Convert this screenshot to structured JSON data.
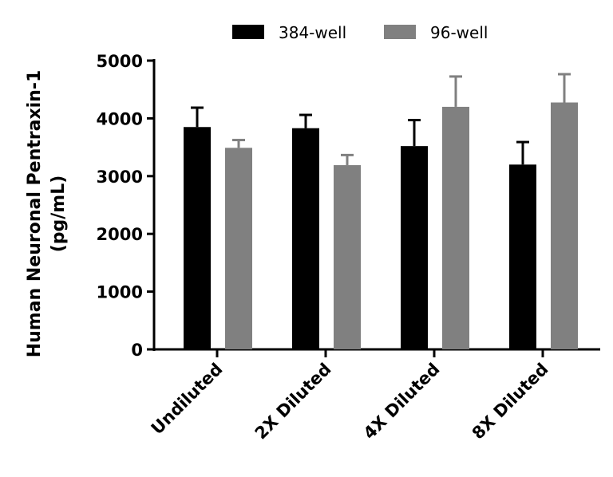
{
  "chart_data": {
    "type": "bar",
    "title": "",
    "xlabel": "",
    "ylabel": [
      "Human Neuronal Pentraxin-1",
      "(pg/mL)"
    ],
    "ylim": [
      0,
      5000
    ],
    "yticks": [
      0,
      1000,
      2000,
      3000,
      4000,
      5000
    ],
    "categories": [
      "Undiluted",
      "2X Diluted",
      "4X Diluted",
      "8X Diluted"
    ],
    "legend_placement": "top",
    "series": [
      {
        "name": "384-well",
        "color": "#000000",
        "values": [
          3850,
          3830,
          3520,
          3200
        ],
        "error": [
          335,
          230,
          450,
          390
        ]
      },
      {
        "name": "96-well",
        "color": "#808080",
        "values": [
          3490,
          3190,
          4200,
          4275
        ],
        "error": [
          135,
          175,
          525,
          490
        ]
      }
    ]
  }
}
